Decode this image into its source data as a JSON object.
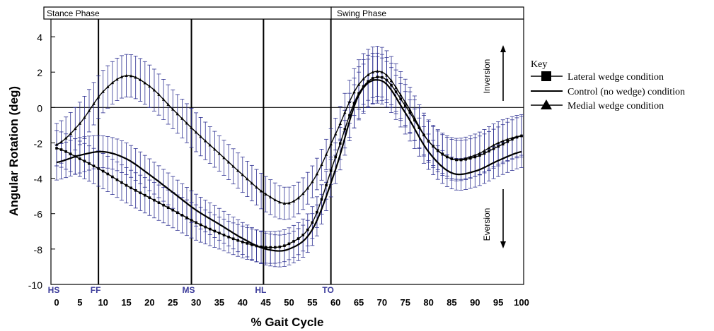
{
  "chart_data": {
    "type": "line",
    "xlabel": "% Gait Cycle",
    "ylabel": "Angular Rotation (deg)",
    "xlim": [
      0,
      100
    ],
    "ylim": [
      -10,
      5
    ],
    "x_ticks": [
      0,
      5,
      10,
      15,
      20,
      25,
      30,
      35,
      40,
      45,
      50,
      55,
      60,
      65,
      70,
      75,
      80,
      85,
      90,
      95,
      100
    ],
    "y_ticks": [
      4,
      2,
      0,
      -2,
      -4,
      -6,
      -8,
      -10
    ],
    "phases": [
      {
        "label": "Stance Phase",
        "start": 0,
        "end": 59
      },
      {
        "label": "Swing Phase",
        "start": 59,
        "end": 100
      }
    ],
    "events": [
      {
        "label": "HS",
        "x": 0
      },
      {
        "label": "FF",
        "x": 9
      },
      {
        "label": "MS",
        "x": 29
      },
      {
        "label": "HL",
        "x": 44.5
      },
      {
        "label": "TO",
        "x": 59
      }
    ],
    "annotations": {
      "inversion": "Inversion",
      "eversion": "Eversion"
    },
    "legend": {
      "title": "Key",
      "placement": "right",
      "entries": [
        "Lateral wedge condition",
        "Control (no wedge) condition",
        "Medial wedge condition"
      ]
    },
    "x": [
      0,
      5,
      10,
      15,
      20,
      25,
      30,
      35,
      40,
      45,
      50,
      55,
      60,
      65,
      70,
      75,
      80,
      85,
      90,
      95,
      100
    ],
    "series": [
      {
        "marker": "square",
        "values": [
          -2.3,
          -2.9,
          -3.6,
          -4.4,
          -5.1,
          -5.8,
          -6.5,
          -7.1,
          -7.6,
          -7.9,
          -7.7,
          -6.5,
          -2.8,
          0.8,
          1.7,
          0.1,
          -1.9,
          -2.9,
          -2.8,
          -2.2,
          -1.6
        ],
        "error": [
          1.0,
          1.0,
          1.0,
          1.0,
          1.0,
          1.0,
          1.0,
          0.9,
          0.9,
          0.9,
          0.9,
          0.9,
          0.8,
          1.5,
          1.3,
          1.2,
          1.1,
          1.1,
          1.1,
          1.1,
          1.1
        ]
      },
      {
        "marker": "none",
        "values": [
          -3.1,
          -2.7,
          -2.5,
          -2.9,
          -3.8,
          -4.8,
          -5.8,
          -6.6,
          -7.4,
          -8.0,
          -8.0,
          -6.9,
          -3.5,
          0.7,
          1.5,
          -0.3,
          -2.5,
          -3.7,
          -3.6,
          -3.0,
          -2.5
        ],
        "error": [
          1.0,
          1.0,
          0.9,
          0.9,
          0.9,
          0.9,
          0.9,
          0.9,
          0.9,
          0.9,
          0.9,
          0.9,
          0.8,
          1.3,
          1.3,
          1.2,
          1.0,
          0.9,
          0.9,
          0.9,
          0.9
        ]
      },
      {
        "marker": "triangle",
        "values": [
          -2.1,
          -0.9,
          0.9,
          1.8,
          1.2,
          -0.1,
          -1.4,
          -2.6,
          -3.8,
          -4.9,
          -5.4,
          -4.2,
          -1.5,
          1.3,
          2.0,
          0.3,
          -1.9,
          -2.9,
          -2.7,
          -2.0,
          -1.6
        ],
        "error": [
          1.2,
          1.2,
          1.2,
          1.2,
          1.2,
          1.1,
          1.1,
          1.0,
          1.0,
          1.0,
          0.9,
          0.9,
          0.9,
          1.4,
          1.4,
          1.3,
          1.2,
          1.2,
          1.2,
          1.2,
          1.2
        ]
      }
    ]
  },
  "colors": {
    "error_bar": "#2e3192",
    "axis": "#000000",
    "event_label": "#3b3b9a"
  }
}
